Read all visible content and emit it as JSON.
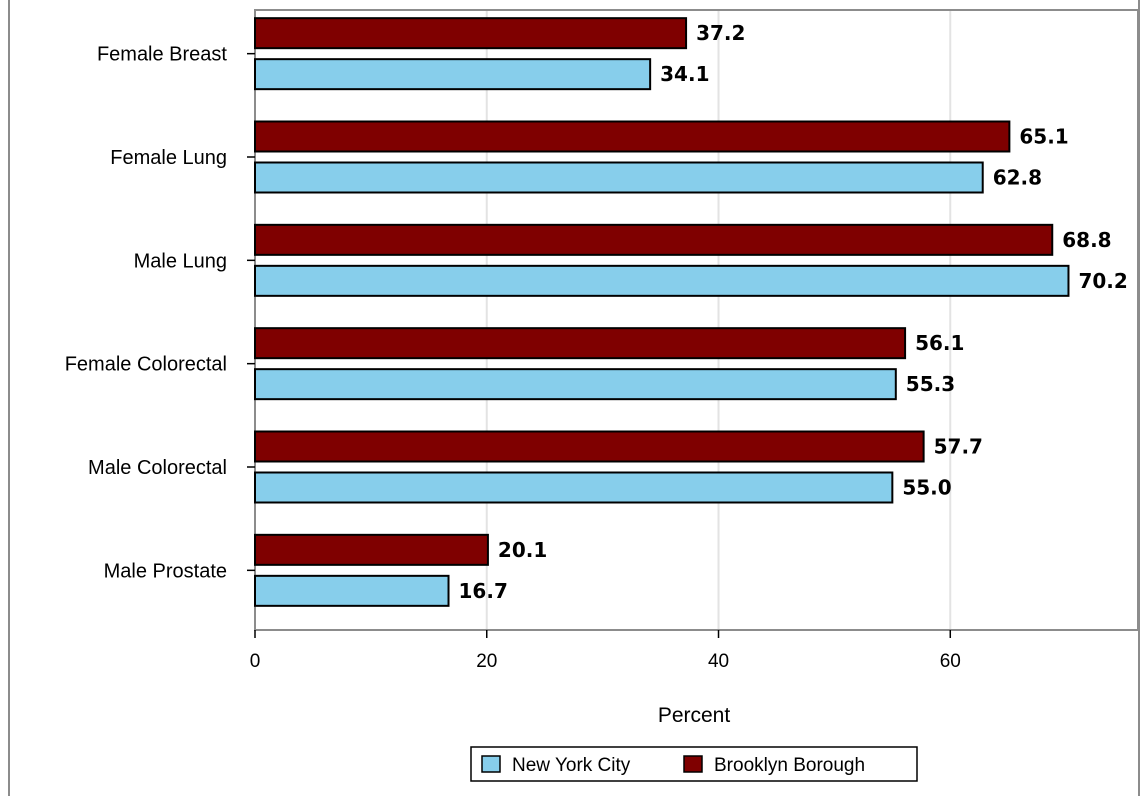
{
  "chart_data": {
    "type": "bar",
    "orientation": "horizontal",
    "categories": [
      "Female Breast",
      "Female Lung",
      "Male Lung",
      "Female Colorectal",
      "Male Colorectal",
      "Male Prostate"
    ],
    "series": [
      {
        "name": "Brooklyn Borough",
        "color": "#7f0000",
        "values": [
          37.2,
          65.1,
          68.8,
          56.1,
          57.7,
          20.1
        ],
        "labels": [
          "37.2",
          "65.1",
          "68.8",
          "56.1",
          "57.7",
          "20.1"
        ]
      },
      {
        "name": "New York City",
        "color": "#87ceeb",
        "values": [
          34.1,
          62.8,
          70.2,
          55.3,
          55.0,
          16.7
        ],
        "labels": [
          "34.1",
          "62.8",
          "70.2",
          "55.3",
          "55.0",
          "16.7"
        ]
      }
    ],
    "xlabel": "Percent",
    "ylabel": "",
    "xlim": [
      0,
      76.2
    ],
    "xticks": [
      "0",
      "20",
      "40",
      "60"
    ],
    "xtick_values": [
      0,
      20,
      40,
      60
    ],
    "grid": "vertical",
    "legend": {
      "position": "bottom",
      "items": [
        "New York City",
        "Brooklyn Borough"
      ]
    }
  }
}
